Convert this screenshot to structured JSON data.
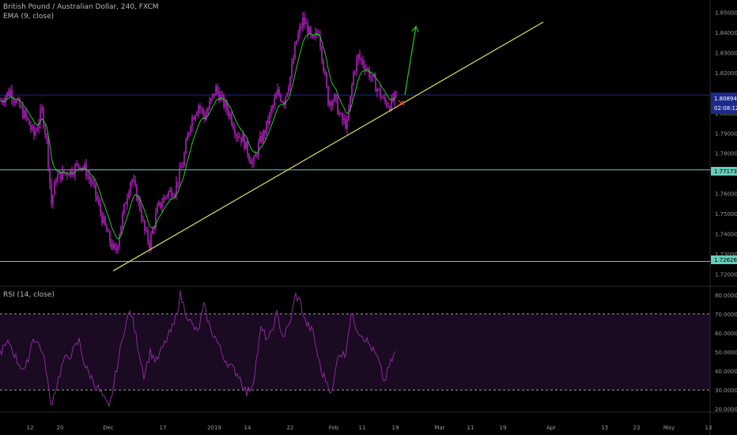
{
  "header": {
    "instrument": "British Pound / Australian Dollar, 240, FXCM",
    "ema_label": "EMA (9, close)",
    "rsi_label": "RSI (14, close)"
  },
  "colors": {
    "background": "#000000",
    "candle": "#cc22dd",
    "ema": "#22cc22",
    "trendline": "#e0e060",
    "arrow": "#22cc22",
    "support": "#66ccbb",
    "price_line": "#1c2a8c",
    "rsi_line": "#8a2c9a",
    "rsi_band": "#1a0a22"
  },
  "price_axis": {
    "ticks": [
      "1.85000",
      "1.84000",
      "1.83000",
      "1.82000",
      "1.80000",
      "1.79000",
      "1.78000",
      "1.76000",
      "1.75000",
      "1.74000",
      "1.73000",
      "1.72000"
    ],
    "current_price": "1.80894",
    "countdown": "02:08:12",
    "support_high": "1.77173",
    "support_low": "1.72626"
  },
  "rsi_axis": {
    "ticks": [
      "80.0000",
      "70.0000",
      "60.0000",
      "50.0000",
      "40.0000",
      "30.0000",
      "20.0000"
    ]
  },
  "date_axis": [
    "12",
    "20",
    "Dec",
    "17",
    "2019",
    "14",
    "22",
    "Feb",
    "11",
    "19",
    "Mar",
    "11",
    "19",
    "Apr",
    "15",
    "23",
    "May",
    "13"
  ],
  "chart_data": {
    "type": "candlestick",
    "title": "British Pound / Australian Dollar, 240, FXCM",
    "price_range": [
      1.717,
      1.853
    ],
    "close_path": [
      [
        0,
        1.806
      ],
      [
        12,
        1.811
      ],
      [
        22,
        1.804
      ],
      [
        34,
        1.796
      ],
      [
        42,
        1.789
      ],
      [
        52,
        1.801
      ],
      [
        58,
        1.786
      ],
      [
        64,
        1.755
      ],
      [
        70,
        1.768
      ],
      [
        80,
        1.77
      ],
      [
        92,
        1.772
      ],
      [
        100,
        1.775
      ],
      [
        108,
        1.771
      ],
      [
        118,
        1.762
      ],
      [
        128,
        1.748
      ],
      [
        138,
        1.736
      ],
      [
        145,
        1.73
      ],
      [
        152,
        1.745
      ],
      [
        160,
        1.76
      ],
      [
        165,
        1.768
      ],
      [
        175,
        1.755
      ],
      [
        182,
        1.741
      ],
      [
        188,
        1.735
      ],
      [
        198,
        1.752
      ],
      [
        210,
        1.76
      ],
      [
        220,
        1.762
      ],
      [
        230,
        1.775
      ],
      [
        240,
        1.796
      ],
      [
        250,
        1.804
      ],
      [
        258,
        1.798
      ],
      [
        266,
        1.806
      ],
      [
        272,
        1.812
      ],
      [
        280,
        1.806
      ],
      [
        290,
        1.799
      ],
      [
        298,
        1.79
      ],
      [
        306,
        1.787
      ],
      [
        313,
        1.78
      ],
      [
        319,
        1.774
      ],
      [
        326,
        1.784
      ],
      [
        334,
        1.791
      ],
      [
        342,
        1.801
      ],
      [
        350,
        1.81
      ],
      [
        358,
        1.806
      ],
      [
        366,
        1.818
      ],
      [
        374,
        1.836
      ],
      [
        382,
        1.846
      ],
      [
        388,
        1.842
      ],
      [
        394,
        1.835
      ],
      [
        402,
        1.841
      ],
      [
        408,
        1.823
      ],
      [
        414,
        1.806
      ],
      [
        422,
        1.807
      ],
      [
        430,
        1.797
      ],
      [
        438,
        1.794
      ],
      [
        446,
        1.82
      ],
      [
        452,
        1.828
      ],
      [
        460,
        1.824
      ],
      [
        468,
        1.818
      ],
      [
        476,
        1.812
      ],
      [
        484,
        1.806
      ],
      [
        492,
        1.804
      ],
      [
        500,
        1.808
      ]
    ],
    "ema_period": 9,
    "trendline": {
      "from": {
        "date": "Dec 3",
        "price": 1.7215
      },
      "to": {
        "date": "Apr 2",
        "price": 1.8452
      }
    },
    "projection_arrow": {
      "from_price": 1.809,
      "to_price": 1.843
    },
    "horizontal_levels": [
      1.77173,
      1.72626
    ],
    "current_price": 1.80894,
    "rsi": {
      "period": 14,
      "range": [
        18,
        82
      ],
      "overbought": 70,
      "oversold": 30,
      "values": [
        [
          0,
          50
        ],
        [
          12,
          55
        ],
        [
          22,
          45
        ],
        [
          32,
          40
        ],
        [
          42,
          58
        ],
        [
          52,
          52
        ],
        [
          58,
          42
        ],
        [
          64,
          22
        ],
        [
          70,
          30
        ],
        [
          80,
          45
        ],
        [
          92,
          50
        ],
        [
          100,
          56
        ],
        [
          108,
          42
        ],
        [
          118,
          35
        ],
        [
          128,
          28
        ],
        [
          138,
          20
        ],
        [
          148,
          42
        ],
        [
          158,
          64
        ],
        [
          165,
          72
        ],
        [
          172,
          58
        ],
        [
          182,
          38
        ],
        [
          190,
          50
        ],
        [
          198,
          45
        ],
        [
          210,
          56
        ],
        [
          220,
          64
        ],
        [
          228,
          80
        ],
        [
          234,
          72
        ],
        [
          240,
          66
        ],
        [
          250,
          60
        ],
        [
          258,
          74
        ],
        [
          266,
          62
        ],
        [
          272,
          58
        ],
        [
          282,
          48
        ],
        [
          292,
          42
        ],
        [
          302,
          38
        ],
        [
          312,
          28
        ],
        [
          320,
          34
        ],
        [
          330,
          62
        ],
        [
          340,
          56
        ],
        [
          350,
          70
        ],
        [
          358,
          58
        ],
        [
          366,
          64
        ],
        [
          374,
          80
        ],
        [
          380,
          76
        ],
        [
          386,
          66
        ],
        [
          396,
          60
        ],
        [
          406,
          40
        ],
        [
          414,
          34
        ],
        [
          420,
          28
        ],
        [
          428,
          50
        ],
        [
          436,
          48
        ],
        [
          444,
          70
        ],
        [
          452,
          62
        ],
        [
          460,
          58
        ],
        [
          470,
          52
        ],
        [
          478,
          46
        ],
        [
          486,
          34
        ],
        [
          492,
          42
        ],
        [
          500,
          50
        ]
      ]
    }
  }
}
